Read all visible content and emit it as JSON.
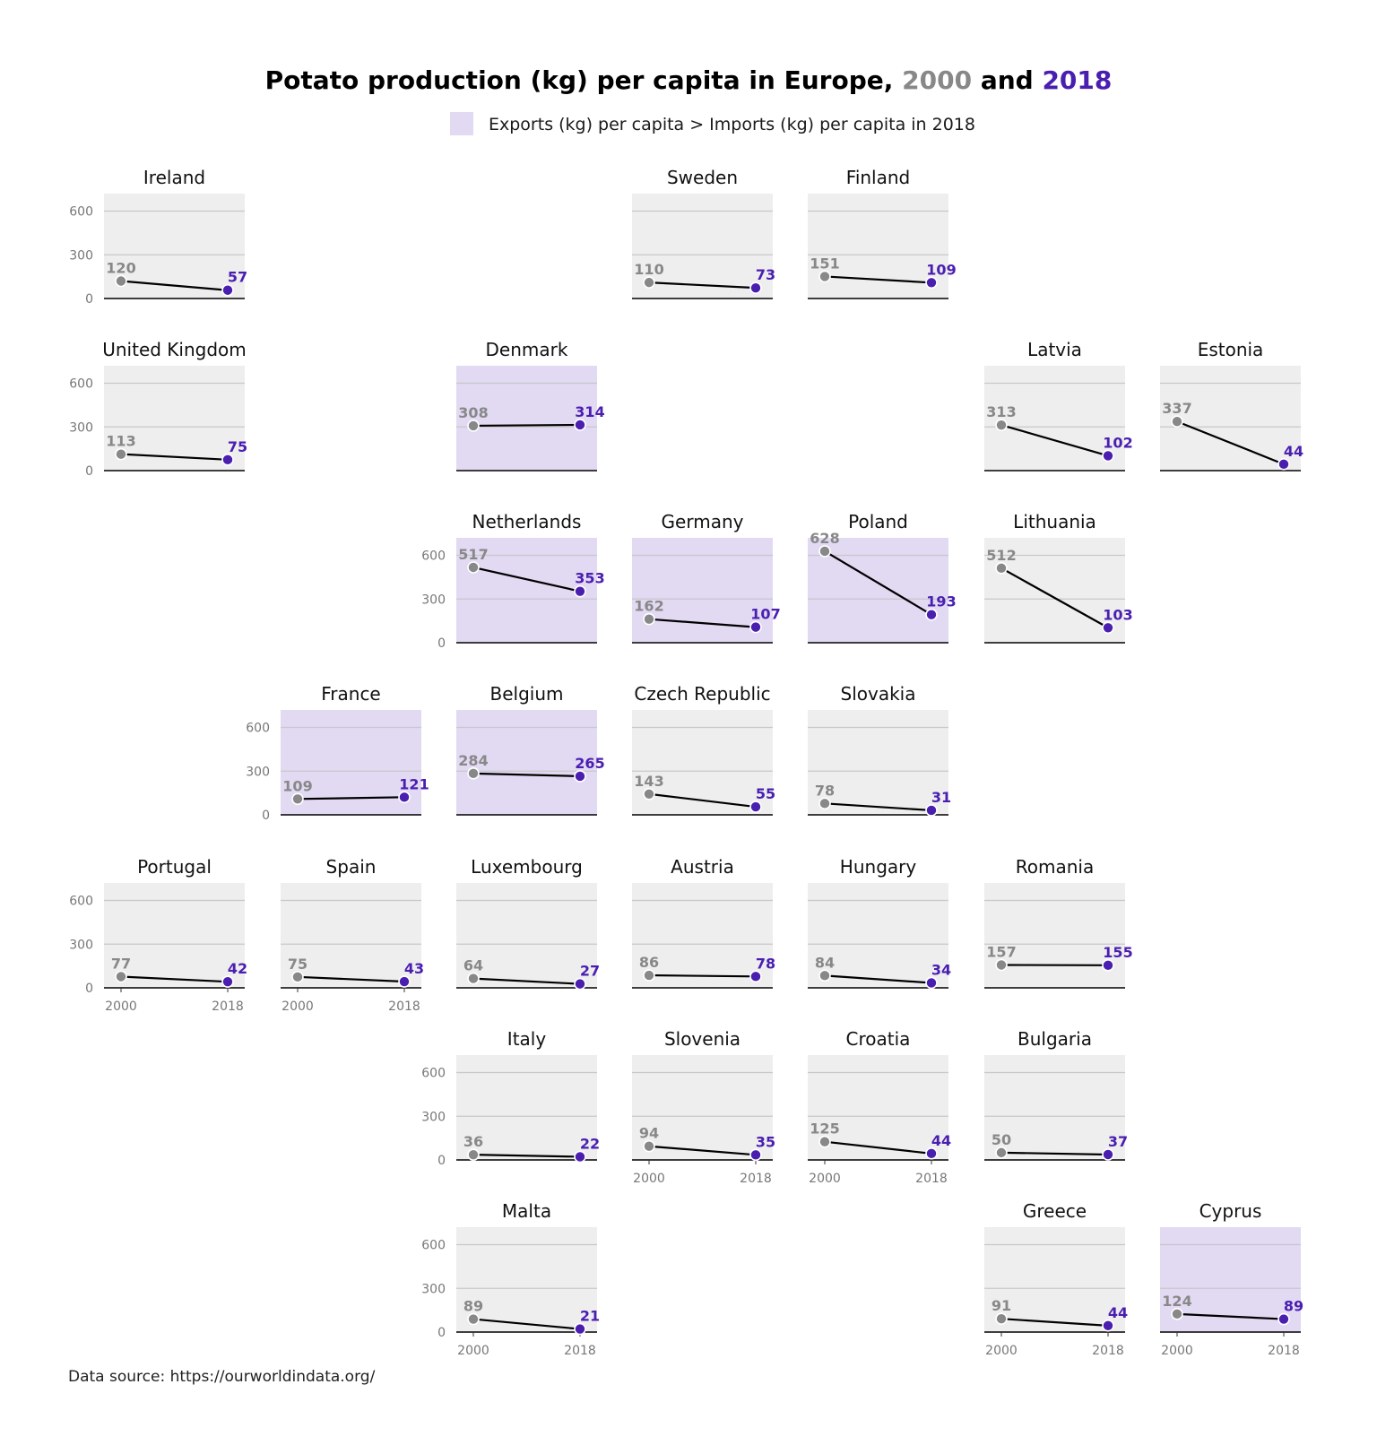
{
  "title": {
    "prefix": "Potato production (kg) per capita in Europe, ",
    "year1": "2000",
    "middle": " and ",
    "year2": "2018"
  },
  "legend": {
    "label": "Exports (kg) per capita > Imports (kg) per capita in 2018"
  },
  "source": "Data source: https://ourworldindata.org/",
  "colors": {
    "color_2000": "#888888",
    "color_2018": "#4a1fb0",
    "panel_bg": "#eeeeee",
    "highlight_bg": "#e2d9f3",
    "gridline": "#c8c8c8",
    "line": "#000000"
  },
  "chart_data": {
    "type": "line",
    "x": [
      "2000",
      "2018"
    ],
    "y_ticks": [
      0,
      300,
      600
    ],
    "ylim": [
      0,
      720
    ],
    "panels": [
      {
        "country": "Ireland",
        "row": 0,
        "col": 0,
        "v2000": 120,
        "v2018": 57,
        "exporter": false,
        "y_axis": true,
        "x_axis": false
      },
      {
        "country": "Sweden",
        "row": 0,
        "col": 3,
        "v2000": 110,
        "v2018": 73,
        "exporter": false,
        "y_axis": false,
        "x_axis": false
      },
      {
        "country": "Finland",
        "row": 0,
        "col": 4,
        "v2000": 151,
        "v2018": 109,
        "exporter": false,
        "y_axis": false,
        "x_axis": false
      },
      {
        "country": "United Kingdom",
        "row": 1,
        "col": 0,
        "v2000": 113,
        "v2018": 75,
        "exporter": false,
        "y_axis": true,
        "x_axis": false
      },
      {
        "country": "Denmark",
        "row": 1,
        "col": 2,
        "v2000": 308,
        "v2018": 314,
        "exporter": true,
        "y_axis": false,
        "x_axis": false
      },
      {
        "country": "Latvia",
        "row": 1,
        "col": 5,
        "v2000": 313,
        "v2018": 102,
        "exporter": false,
        "y_axis": false,
        "x_axis": false
      },
      {
        "country": "Estonia",
        "row": 1,
        "col": 6,
        "v2000": 337,
        "v2018": 44,
        "exporter": false,
        "y_axis": false,
        "x_axis": false
      },
      {
        "country": "Netherlands",
        "row": 2,
        "col": 2,
        "v2000": 517,
        "v2018": 353,
        "exporter": true,
        "y_axis": true,
        "x_axis": false
      },
      {
        "country": "Germany",
        "row": 2,
        "col": 3,
        "v2000": 162,
        "v2018": 107,
        "exporter": true,
        "y_axis": false,
        "x_axis": false
      },
      {
        "country": "Poland",
        "row": 2,
        "col": 4,
        "v2000": 628,
        "v2018": 193,
        "exporter": true,
        "y_axis": false,
        "x_axis": false
      },
      {
        "country": "Lithuania",
        "row": 2,
        "col": 5,
        "v2000": 512,
        "v2018": 103,
        "exporter": false,
        "y_axis": false,
        "x_axis": false
      },
      {
        "country": "France",
        "row": 3,
        "col": 1,
        "v2000": 109,
        "v2018": 121,
        "exporter": true,
        "y_axis": true,
        "x_axis": false
      },
      {
        "country": "Belgium",
        "row": 3,
        "col": 2,
        "v2000": 284,
        "v2018": 265,
        "exporter": true,
        "y_axis": false,
        "x_axis": false
      },
      {
        "country": "Czech Republic",
        "row": 3,
        "col": 3,
        "v2000": 143,
        "v2018": 55,
        "exporter": false,
        "y_axis": false,
        "x_axis": false
      },
      {
        "country": "Slovakia",
        "row": 3,
        "col": 4,
        "v2000": 78,
        "v2018": 31,
        "exporter": false,
        "y_axis": false,
        "x_axis": false
      },
      {
        "country": "Portugal",
        "row": 4,
        "col": 0,
        "v2000": 77,
        "v2018": 42,
        "exporter": false,
        "y_axis": true,
        "x_axis": true
      },
      {
        "country": "Spain",
        "row": 4,
        "col": 1,
        "v2000": 75,
        "v2018": 43,
        "exporter": false,
        "y_axis": false,
        "x_axis": true
      },
      {
        "country": "Luxembourg",
        "row": 4,
        "col": 2,
        "v2000": 64,
        "v2018": 27,
        "exporter": false,
        "y_axis": false,
        "x_axis": false
      },
      {
        "country": "Austria",
        "row": 4,
        "col": 3,
        "v2000": 86,
        "v2018": 78,
        "exporter": false,
        "y_axis": false,
        "x_axis": false
      },
      {
        "country": "Hungary",
        "row": 4,
        "col": 4,
        "v2000": 84,
        "v2018": 34,
        "exporter": false,
        "y_axis": false,
        "x_axis": false
      },
      {
        "country": "Romania",
        "row": 4,
        "col": 5,
        "v2000": 157,
        "v2018": 155,
        "exporter": false,
        "y_axis": false,
        "x_axis": false
      },
      {
        "country": "Italy",
        "row": 5,
        "col": 2,
        "v2000": 36,
        "v2018": 22,
        "exporter": false,
        "y_axis": true,
        "x_axis": false
      },
      {
        "country": "Slovenia",
        "row": 5,
        "col": 3,
        "v2000": 94,
        "v2018": 35,
        "exporter": false,
        "y_axis": false,
        "x_axis": true
      },
      {
        "country": "Croatia",
        "row": 5,
        "col": 4,
        "v2000": 125,
        "v2018": 44,
        "exporter": false,
        "y_axis": false,
        "x_axis": true
      },
      {
        "country": "Bulgaria",
        "row": 5,
        "col": 5,
        "v2000": 50,
        "v2018": 37,
        "exporter": false,
        "y_axis": false,
        "x_axis": false
      },
      {
        "country": "Malta",
        "row": 6,
        "col": 2,
        "v2000": 89,
        "v2018": 21,
        "exporter": false,
        "y_axis": true,
        "x_axis": true
      },
      {
        "country": "Greece",
        "row": 6,
        "col": 5,
        "v2000": 91,
        "v2018": 44,
        "exporter": false,
        "y_axis": false,
        "x_axis": true
      },
      {
        "country": "Cyprus",
        "row": 6,
        "col": 6,
        "v2000": 124,
        "v2018": 89,
        "exporter": true,
        "y_axis": false,
        "x_axis": true
      }
    ]
  }
}
